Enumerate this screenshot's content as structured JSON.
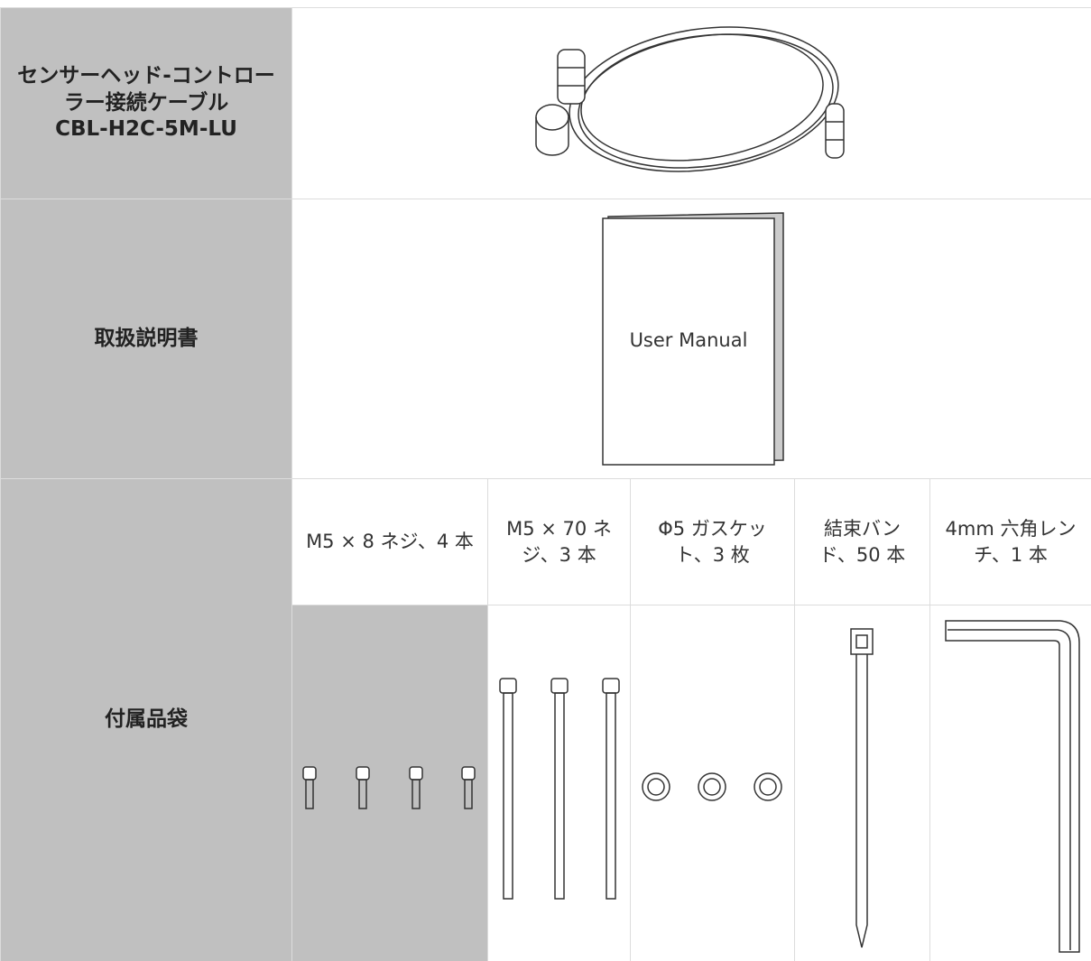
{
  "cable": {
    "label": "センサーヘッド-コントローラー接続ケーブル",
    "model": "CBL-H2C-5M-LU"
  },
  "manual": {
    "label": "取扱説明書",
    "cover_text": "User Manual"
  },
  "accessories": {
    "label": "付属品袋",
    "items": [
      "M5 × 8 ネジ、4 本",
      "M5 × 70 ネジ、3 本",
      "Φ5 ガスケット、3 枚",
      "結束バンド、50 本",
      "4mm 六角レンチ、1 本"
    ]
  }
}
